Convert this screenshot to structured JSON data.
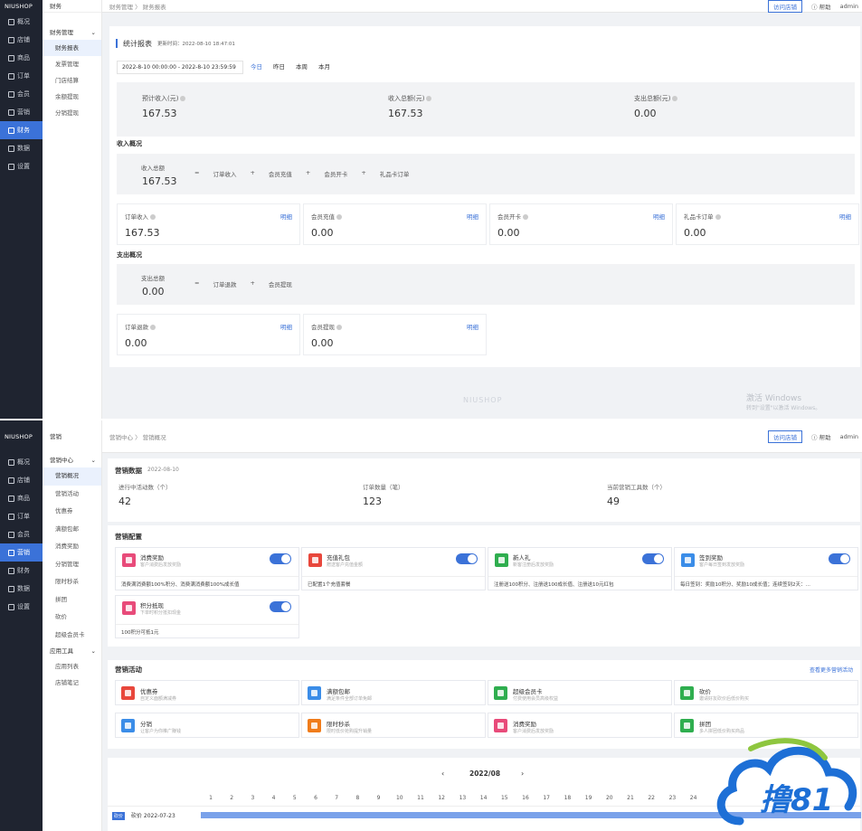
{
  "brand": "NIUSHOP",
  "colors": {
    "sidebar": "#1f2430",
    "accent": "#3b72d8",
    "logo_blue": "#1d6fd6"
  },
  "panel1": {
    "nav": [
      {
        "label": "概况",
        "icon": "dashboard-icon"
      },
      {
        "label": "店铺",
        "icon": "store-icon"
      },
      {
        "label": "商品",
        "icon": "goods-icon"
      },
      {
        "label": "订单",
        "icon": "order-icon"
      },
      {
        "label": "会员",
        "icon": "member-icon"
      },
      {
        "label": "营销",
        "icon": "marketing-icon"
      },
      {
        "label": "财务",
        "icon": "finance-icon",
        "active": true
      },
      {
        "label": "数据",
        "icon": "data-icon"
      },
      {
        "label": "设置",
        "icon": "settings-icon"
      }
    ],
    "sub_header": "财务",
    "sub_group": "财务管理",
    "sub_items": [
      "财务报表",
      "发票管理",
      "门店结算",
      "余额提现",
      "分销提现"
    ],
    "breadcrumb": "财务管理 〉 财务报表",
    "visit_label": "访问店铺",
    "help_label": "帮助",
    "user_label": "admin",
    "report_title": "统计报表",
    "update_time": "更新时间：2022-08-10 18:47:01",
    "date_range": "2022-8-10 00:00:00 - 2022-8-10 23:59:59",
    "quick": [
      "今日",
      "昨日",
      "本周",
      "本月"
    ],
    "summary": [
      {
        "label": "预计收入(元)",
        "value": "167.53"
      },
      {
        "label": "收入总额(元)",
        "value": "167.53"
      },
      {
        "label": "支出总额(元)",
        "value": "0.00"
      }
    ],
    "income_title": "收入概况",
    "income_total_label": "收入总额",
    "income_total_value": "167.53",
    "income_formula": [
      "=",
      "订单收入",
      "+",
      "会员充值",
      "+",
      "会员开卡",
      "+",
      "礼品卡订单"
    ],
    "income_cards": [
      {
        "label": "订单收入",
        "value": "167.53",
        "link": "明细"
      },
      {
        "label": "会员充值",
        "value": "0.00",
        "link": "明细"
      },
      {
        "label": "会员开卡",
        "value": "0.00",
        "link": "明细"
      },
      {
        "label": "礼品卡订单",
        "value": "0.00",
        "link": "明细"
      }
    ],
    "expense_title": "支出概况",
    "expense_total_label": "支出总额",
    "expense_total_value": "0.00",
    "expense_formula": [
      "=",
      "订单退款",
      "+",
      "会员提现"
    ],
    "expense_cards": [
      {
        "label": "订单退款",
        "value": "0.00",
        "link": "明细"
      },
      {
        "label": "会员提现",
        "value": "0.00",
        "link": "明细"
      }
    ],
    "footer_brand": "NIUSHOP",
    "win_title": "激活 Windows",
    "win_sub": "转到\"设置\"以激活 Windows。"
  },
  "panel2": {
    "nav": [
      {
        "label": "概况",
        "icon": "dashboard-icon"
      },
      {
        "label": "店铺",
        "icon": "store-icon"
      },
      {
        "label": "商品",
        "icon": "goods-icon"
      },
      {
        "label": "订单",
        "icon": "order-icon"
      },
      {
        "label": "会员",
        "icon": "member-icon"
      },
      {
        "label": "营销",
        "icon": "marketing-icon",
        "active": true
      },
      {
        "label": "财务",
        "icon": "finance-icon"
      },
      {
        "label": "数据",
        "icon": "data-icon"
      },
      {
        "label": "设置",
        "icon": "settings-icon"
      }
    ],
    "sub_header": "营销",
    "sub_group": "营销中心",
    "sub_items": [
      "营销概况",
      "营销活动",
      "优惠券",
      "满额包邮",
      "消费奖励",
      "分销管理",
      "限时秒杀",
      "拼团",
      "砍价",
      "超级会员卡"
    ],
    "sub_group2": "应用工具",
    "sub_items2": [
      "应用列表",
      "店铺笔记"
    ],
    "breadcrumb": "营销中心 〉 营销概况",
    "visit_label": "访问店铺",
    "help_label": "帮助",
    "user_label": "admin",
    "data_title": "营销数据",
    "data_date": "2022-08-10",
    "stats": [
      {
        "label": "进行中活动数（个）",
        "value": "42"
      },
      {
        "label": "订单数量（笔）",
        "value": "123"
      },
      {
        "label": "当前营销工具数（个）",
        "value": "49"
      }
    ],
    "config_title": "营销配置",
    "configs": [
      {
        "title": "消费奖励",
        "desc": "客户消费后发放奖励",
        "bottom": "消费满消费额100%积分、消费满消费额100%成长值",
        "color": "#e84b7a"
      },
      {
        "title": "充值礼包",
        "desc": "赠送客户充值金额",
        "bottom": "已配置1个充值套餐",
        "color": "#e8473c"
      },
      {
        "title": "新人礼",
        "desc": "新客注册后发放奖励",
        "bottom": "注册送100积分、注册送100成长值、注册送10元红包",
        "color": "#2fae4f"
      },
      {
        "title": "签到奖励",
        "desc": "客户每日签到发放奖励",
        "bottom": "每日签到：奖励10积分、奖励10成长值；连续签到2天：…",
        "color": "#3b8de8"
      },
      {
        "title": "积分抵现",
        "desc": "下单时积分抵扣现金",
        "bottom": "100积分可抵1元",
        "color": "#e84b7a"
      }
    ],
    "activity_title": "营销活动",
    "activity_more": "查看更多营销活动",
    "activities": [
      {
        "title": "优惠券",
        "desc": "自定义面额满减券",
        "color": "#e8473c"
      },
      {
        "title": "满额包邮",
        "desc": "满足条件全部订单免邮",
        "color": "#3b8de8"
      },
      {
        "title": "超级会员卡",
        "desc": "付费使用会员高级权益",
        "color": "#2fae4f"
      },
      {
        "title": "砍价",
        "desc": "邀请好友砍价后低价购买",
        "color": "#2fae4f"
      },
      {
        "title": "分销",
        "desc": "让客户为你推广赚钱",
        "color": "#3b8de8"
      },
      {
        "title": "限时秒杀",
        "desc": "限时低价抢购提升销量",
        "color": "#f07c1b"
      },
      {
        "title": "消费奖励",
        "desc": "客户消费后发放奖励",
        "color": "#e84b7a"
      },
      {
        "title": "拼团",
        "desc": "多人拼团低价购买商品",
        "color": "#2fae4f"
      }
    ],
    "calendar_month": "2022/08",
    "days": [
      "1",
      "2",
      "3",
      "4",
      "5",
      "6",
      "7",
      "8",
      "9",
      "10",
      "11",
      "12",
      "13",
      "14",
      "15",
      "16",
      "17",
      "18",
      "19",
      "20",
      "21",
      "22",
      "23",
      "24"
    ],
    "event_tag": "砍价",
    "event_label": "砍价 2022-07-23",
    "logo_text": "撸81"
  }
}
